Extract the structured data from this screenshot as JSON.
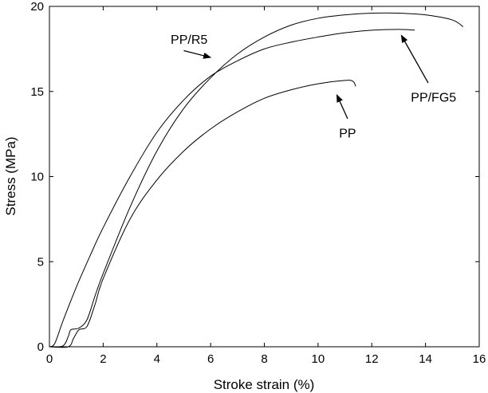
{
  "chart_data": {
    "type": "line",
    "xlabel": "Stroke strain (%)",
    "ylabel": "Stress (MPa)",
    "xlim": [
      0,
      16
    ],
    "ylim": [
      0,
      20
    ],
    "xticks": [
      0,
      2,
      4,
      6,
      8,
      10,
      12,
      14,
      16
    ],
    "yticks": [
      0,
      5,
      10,
      15,
      20
    ],
    "grid": false,
    "line_color": "#000000",
    "series": [
      {
        "name": "PP/FG5",
        "x": [
          0,
          0.2,
          0.5,
          1,
          1.5,
          2,
          3,
          4,
          5,
          6,
          7,
          8,
          9,
          10,
          11,
          12,
          13,
          13.6
        ],
        "y": [
          0,
          0.2,
          1.5,
          3.5,
          5.3,
          7,
          10,
          12.6,
          14.5,
          15.9,
          16.8,
          17.5,
          17.9,
          18.2,
          18.45,
          18.6,
          18.65,
          18.6
        ]
      },
      {
        "name": "PP/R5",
        "x": [
          0,
          0.5,
          0.7,
          0.8,
          1.1,
          1.4,
          1.7,
          2,
          3,
          4,
          5,
          6,
          7,
          8,
          9,
          10,
          11,
          12,
          13,
          14,
          15,
          15.4
        ],
        "y": [
          0,
          0.05,
          0.6,
          1,
          1.1,
          1.6,
          3,
          4.3,
          8.2,
          11.5,
          14,
          15.8,
          17.2,
          18.2,
          18.9,
          19.3,
          19.5,
          19.6,
          19.6,
          19.5,
          19.2,
          18.8
        ]
      },
      {
        "name": "PP",
        "x": [
          0,
          0.7,
          0.9,
          1.1,
          1.4,
          1.7,
          2,
          3,
          4,
          5,
          6,
          7,
          8,
          9,
          10,
          11,
          11.3,
          11.4
        ],
        "y": [
          0,
          0,
          0.5,
          1,
          1.2,
          2.5,
          4,
          7.5,
          9.8,
          11.5,
          12.8,
          13.8,
          14.6,
          15.1,
          15.45,
          15.65,
          15.6,
          15.3
        ]
      }
    ],
    "annotations": [
      {
        "text": "PP/R5",
        "text_at": [
          5.2,
          17.8
        ],
        "arrow_from": [
          5.0,
          17.4
        ],
        "arrow_to": [
          6.0,
          17.0
        ]
      },
      {
        "text": "PP/FG5",
        "text_at": [
          14.3,
          14.4
        ],
        "arrow_from": [
          14.1,
          15.5
        ],
        "arrow_to": [
          13.1,
          18.3
        ]
      },
      {
        "text": "PP",
        "text_at": [
          11.1,
          12.3
        ],
        "arrow_from": [
          11.1,
          13.4
        ],
        "arrow_to": [
          10.7,
          14.8
        ]
      }
    ]
  }
}
